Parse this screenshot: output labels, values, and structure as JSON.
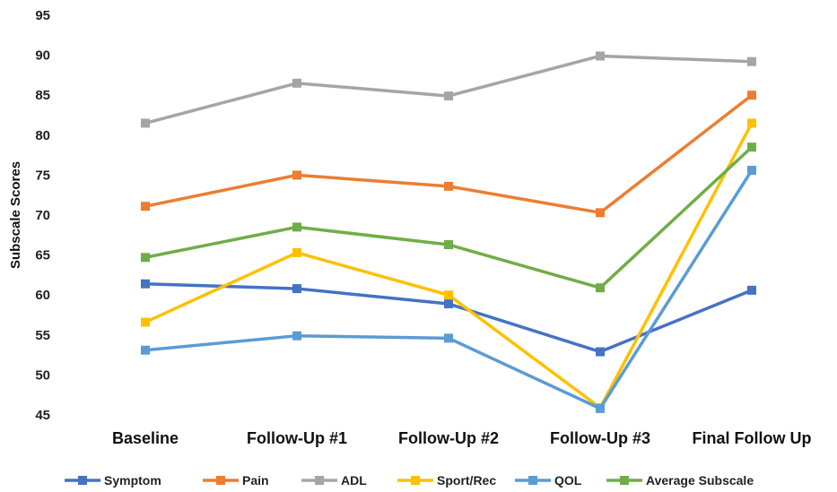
{
  "chart_data": {
    "type": "line",
    "title": "",
    "xlabel": "",
    "ylabel": "Subscale Scores",
    "ylim": [
      45,
      95
    ],
    "yticks": [
      45,
      50,
      55,
      60,
      65,
      70,
      75,
      80,
      85,
      90,
      95
    ],
    "grid": false,
    "legend_position": "bottom",
    "categories": [
      "Baseline",
      "Follow-Up #1",
      "Follow-Up #2",
      "Follow-Up #3",
      "Final Follow Up"
    ],
    "series": [
      {
        "name": "Symptom",
        "color": "#4472C4",
        "values": [
          61.4,
          60.8,
          58.9,
          52.9,
          60.6
        ]
      },
      {
        "name": "Pain",
        "color": "#ED7D31",
        "values": [
          71.1,
          75.0,
          73.6,
          70.3,
          85.0
        ]
      },
      {
        "name": "ADL",
        "color": "#A5A5A5",
        "values": [
          81.5,
          86.5,
          84.9,
          89.9,
          89.2
        ]
      },
      {
        "name": "Sport/Rec",
        "color": "#FFC000",
        "values": [
          56.6,
          65.3,
          60.0,
          45.9,
          81.5
        ]
      },
      {
        "name": "QOL",
        "color": "#5B9BD5",
        "values": [
          53.1,
          54.9,
          54.6,
          45.8,
          75.6
        ]
      },
      {
        "name": "Average Subscale",
        "color": "#70AD47",
        "values": [
          64.7,
          68.5,
          66.3,
          60.9,
          78.5
        ]
      }
    ]
  }
}
